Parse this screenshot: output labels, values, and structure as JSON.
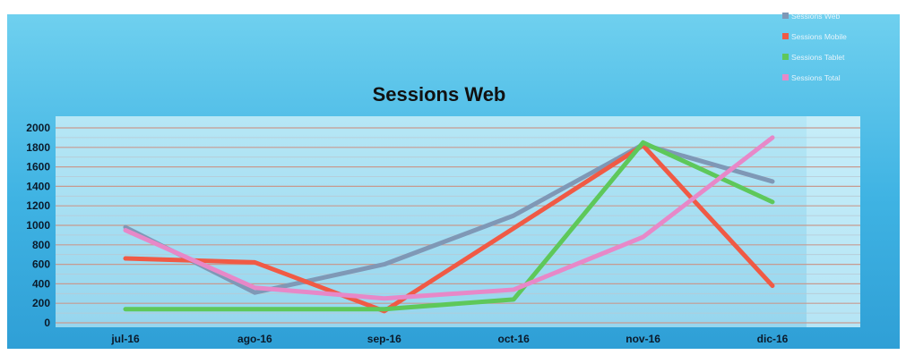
{
  "chart_data": {
    "type": "line",
    "title": "Sessions Web",
    "xlabel": "",
    "ylabel": "",
    "categories": [
      "jul-16",
      "ago-16",
      "sep-16",
      "oct-16",
      "nov-16",
      "dic-16"
    ],
    "ylim": [
      0,
      2000
    ],
    "yticks": [
      0,
      200,
      400,
      600,
      800,
      1000,
      1200,
      1400,
      1600,
      1800,
      2000
    ],
    "grid": true,
    "legend_position": "top-right",
    "series": [
      {
        "name": "Sessions Web",
        "color": "#7f98b6",
        "values": [
          980,
          310,
          600,
          1100,
          1830,
          1450
        ]
      },
      {
        "name": "Sessions Mobile",
        "color": "#f05a45",
        "values": [
          660,
          620,
          120,
          null,
          1820,
          380
        ]
      },
      {
        "name": "Sessions Tablet",
        "color": "#5ec85a",
        "values": [
          140,
          140,
          140,
          240,
          1850,
          1240
        ]
      },
      {
        "name": "Sessions Total",
        "color": "#e788c8",
        "values": [
          950,
          360,
          250,
          340,
          880,
          1900
        ]
      }
    ]
  }
}
